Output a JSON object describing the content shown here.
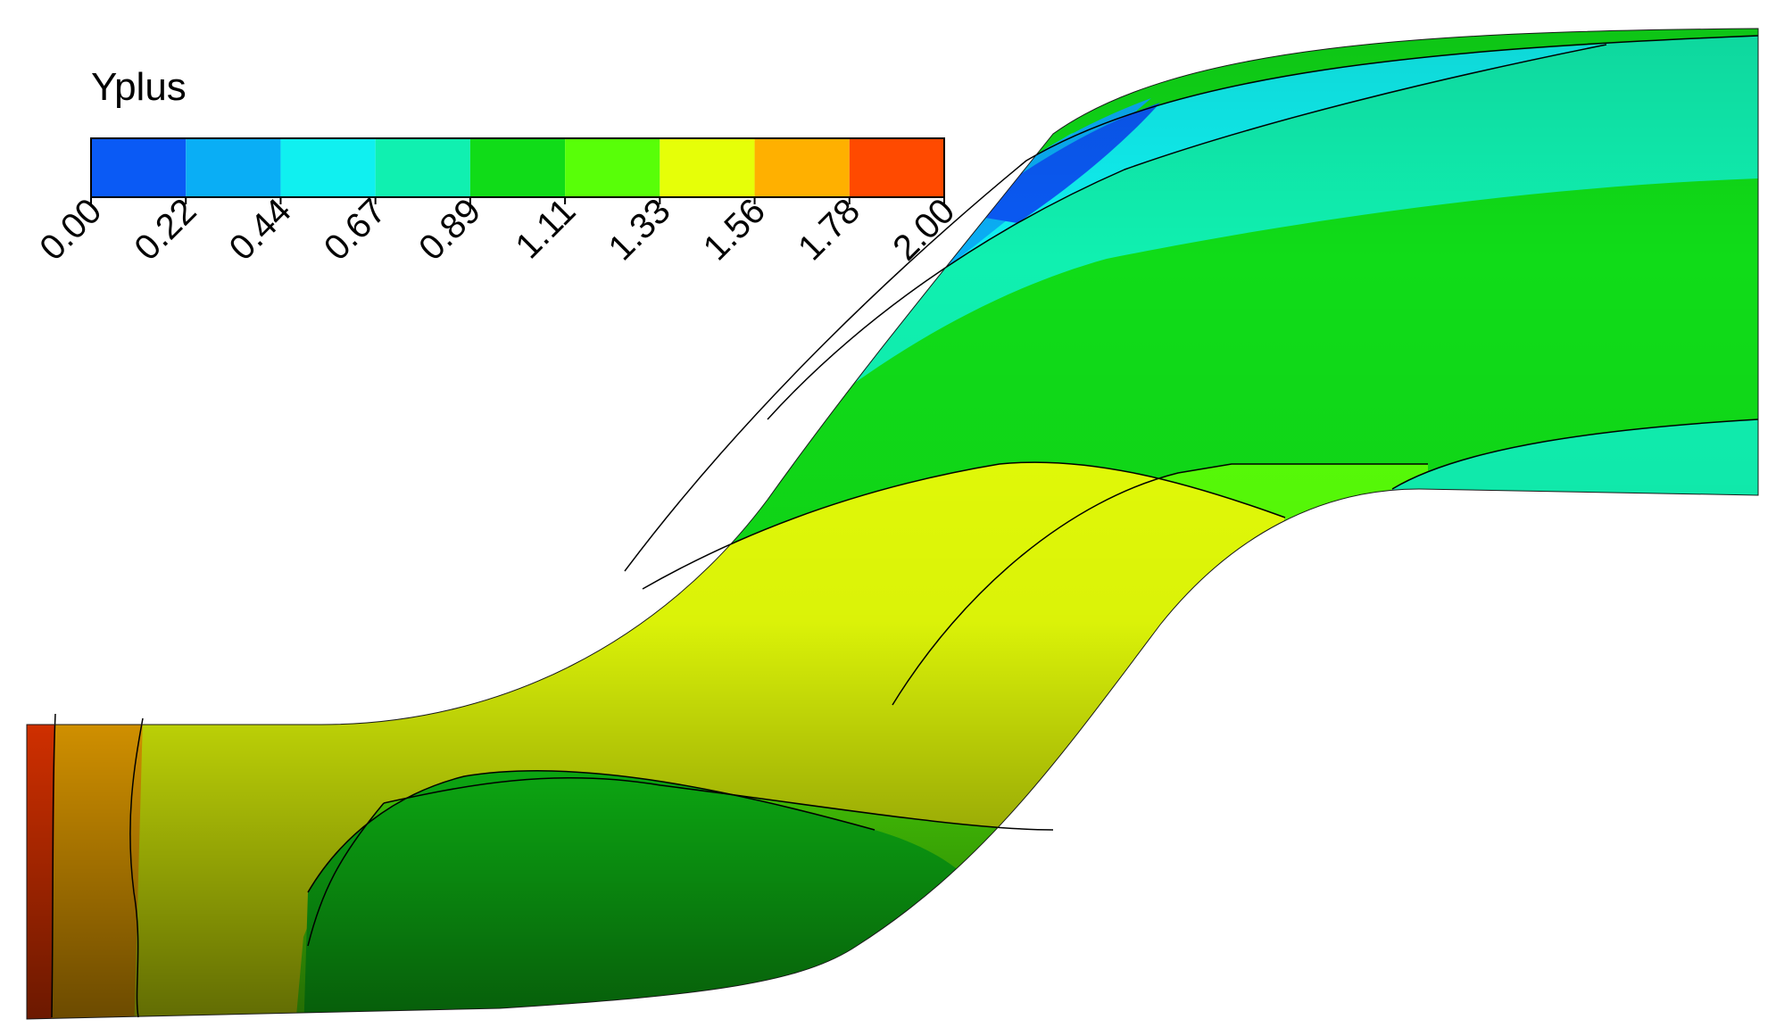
{
  "legend": {
    "title": "Yplus",
    "colors": [
      "#0a5af5",
      "#0aaef5",
      "#10f0f0",
      "#10f0b0",
      "#10dc18",
      "#58ff08",
      "#e6ff08",
      "#ffb000",
      "#ff4a00"
    ],
    "tick_labels": [
      "0.00",
      "0.22",
      "0.44",
      "0.67",
      "0.89",
      "1.11",
      "1.33",
      "1.56",
      "1.78",
      "2.00"
    ]
  }
}
